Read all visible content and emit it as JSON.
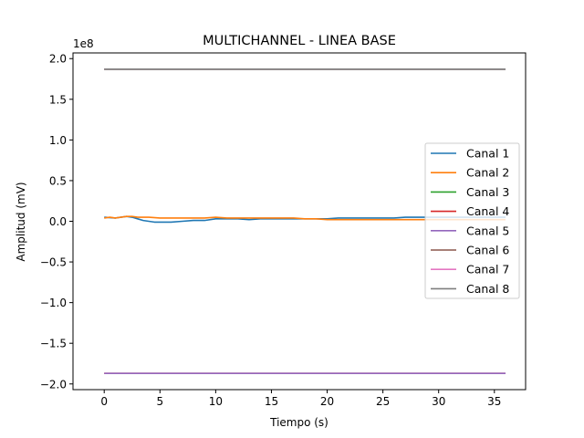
{
  "chart_data": {
    "type": "line",
    "title": "MULTICHANNEL - LINEA BASE",
    "xlabel": "Tiempo (s)",
    "ylabel": "Amplitud (mV)",
    "y_scale_label": "1e8",
    "xlim": [
      -2.8,
      37.8
    ],
    "ylim": [
      -2.07,
      2.07
    ],
    "x_ticks": [
      0,
      5,
      10,
      15,
      20,
      25,
      30,
      35
    ],
    "x_tick_labels": [
      "0",
      "5",
      "10",
      "15",
      "20",
      "25",
      "30",
      "35"
    ],
    "y_ticks": [
      2.0,
      1.5,
      1.0,
      0.5,
      0.0,
      -0.5,
      -1.0,
      -1.5,
      -2.0
    ],
    "y_tick_labels": [
      "2.0",
      "1.5",
      "1.0",
      "0.5",
      "0.0",
      "−0.5",
      "−1.0",
      "−1.5",
      "−2.0"
    ],
    "grid": false,
    "legend_position": "center-right",
    "series": [
      {
        "name": "Canal 1",
        "color": "#1f77b4",
        "x": [
          0,
          1,
          2,
          2.5,
          3,
          3.5,
          4,
          4.5,
          5,
          6,
          7,
          8,
          9,
          10,
          11,
          12,
          13,
          14,
          15,
          16,
          17,
          18,
          19,
          20,
          21,
          22,
          23,
          24,
          25,
          26,
          27,
          28,
          29,
          30,
          31,
          32,
          33,
          34,
          35,
          36
        ],
        "y": [
          0.05,
          0.04,
          0.06,
          0.05,
          0.03,
          0.01,
          0.0,
          -0.01,
          -0.01,
          -0.01,
          0.0,
          0.01,
          0.01,
          0.03,
          0.03,
          0.03,
          0.02,
          0.03,
          0.03,
          0.03,
          0.03,
          0.03,
          0.03,
          0.03,
          0.04,
          0.04,
          0.04,
          0.04,
          0.04,
          0.04,
          0.05,
          0.05,
          0.05,
          0.05,
          0.05,
          0.05,
          0.05,
          0.05,
          0.05,
          0.05
        ]
      },
      {
        "name": "Canal 2",
        "color": "#ff7f0e",
        "x": [
          0,
          0.5,
          1,
          1.5,
          2,
          2.5,
          3,
          4,
          5,
          6,
          7,
          8,
          9,
          10,
          11,
          12,
          13,
          14,
          15,
          16,
          17,
          18,
          19,
          20,
          21,
          22,
          23,
          24,
          25,
          26,
          27,
          28,
          29,
          30,
          31,
          32,
          33,
          34,
          35,
          36
        ],
        "y": [
          0.04,
          0.05,
          0.04,
          0.05,
          0.06,
          0.06,
          0.05,
          0.05,
          0.04,
          0.04,
          0.04,
          0.04,
          0.04,
          0.05,
          0.04,
          0.04,
          0.04,
          0.04,
          0.04,
          0.04,
          0.04,
          0.03,
          0.03,
          0.02,
          0.02,
          0.02,
          0.02,
          0.02,
          0.02,
          0.02,
          0.02,
          0.02,
          0.02,
          0.02,
          0.02,
          0.02,
          0.02,
          0.02,
          0.02,
          0.02
        ]
      },
      {
        "name": "Canal 3",
        "color": "#2ca02c",
        "x": [
          0,
          36
        ],
        "y": [
          1.87,
          1.87
        ]
      },
      {
        "name": "Canal 4",
        "color": "#d62728",
        "x": [
          0,
          36
        ],
        "y": [
          -1.87,
          -1.87
        ]
      },
      {
        "name": "Canal 5",
        "color": "#9467bd",
        "x": [
          0,
          36
        ],
        "y": [
          -1.87,
          -1.87
        ]
      },
      {
        "name": "Canal 6",
        "color": "#8c564b",
        "x": [
          0,
          36
        ],
        "y": [
          1.87,
          1.87
        ]
      },
      {
        "name": "Canal 7",
        "color": "#e377c2",
        "x": [
          0,
          36
        ],
        "y": [
          1.87,
          1.87
        ]
      },
      {
        "name": "Canal 8",
        "color": "#7f7f7f",
        "x": [
          0,
          36
        ],
        "y": [
          1.87,
          1.87
        ]
      }
    ]
  }
}
